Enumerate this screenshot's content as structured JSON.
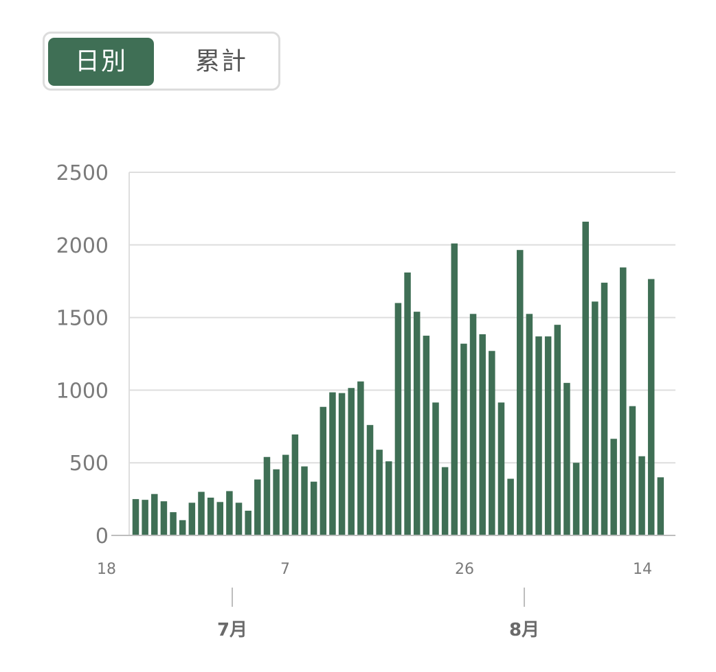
{
  "toggle": {
    "daily_label": "日別",
    "cumulative_label": "累計",
    "selected": "daily"
  },
  "colors": {
    "bar": "#3f6f55",
    "grid": "#dedede",
    "axis": "#bdbdbd"
  },
  "chart_data": {
    "type": "bar",
    "ylim": [
      0,
      2500
    ],
    "y_ticks": [
      0,
      500,
      1000,
      1500,
      2000,
      2500
    ],
    "x_tick_labels": [
      "18",
      "7",
      "26",
      "14"
    ],
    "month_labels": [
      "7月",
      "8月"
    ],
    "grid": true,
    "values": [
      250,
      245,
      285,
      235,
      160,
      105,
      225,
      300,
      260,
      230,
      305,
      225,
      170,
      385,
      540,
      455,
      555,
      695,
      475,
      370,
      885,
      985,
      980,
      1015,
      1060,
      760,
      590,
      510,
      1600,
      1810,
      1540,
      1375,
      915,
      470,
      2010,
      1320,
      1525,
      1385,
      1270,
      915,
      390,
      1965,
      1525,
      1370,
      1370,
      1450,
      1050,
      500,
      2160,
      1610,
      1740,
      665,
      1845,
      890,
      545,
      1765,
      400
    ]
  }
}
